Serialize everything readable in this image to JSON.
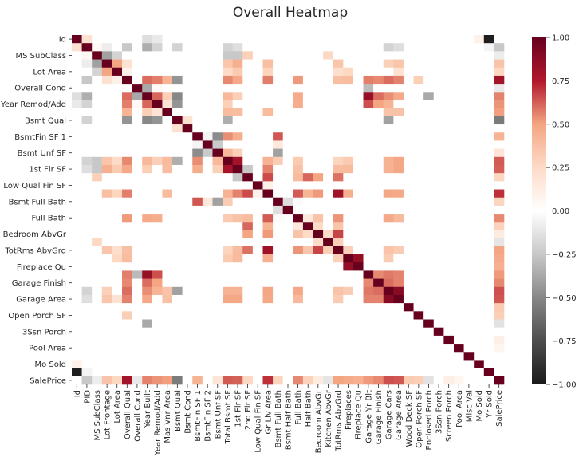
{
  "chart_data": {
    "type": "heatmap",
    "title": "Overall Heatmap",
    "variables": [
      "Id",
      "PID",
      "MS SubClass",
      "Lot Frontage",
      "Lot Area",
      "Overall Qual",
      "Overall Cond",
      "Year Built",
      "Year Remod/Add",
      "Mas Vnr Area",
      "Bsmt Qual",
      "Bsmt Cond",
      "BsmtFin SF 1",
      "BsmtFin SF 2",
      "Bsmt Unf SF",
      "Total Bsmt SF",
      "1st Flr SF",
      "2nd Flr SF",
      "Low Qual Fin SF",
      "Gr Liv Area",
      "Bsmt Full Bath",
      "Bsmt Half Bath",
      "Full Bath",
      "Half Bath",
      "Bedroom AbvGr",
      "Kitchen AbvGr",
      "TotRms AbvGrd",
      "Fireplaces",
      "Fireplace Qu",
      "Garage Yr Blt",
      "Garage Finish",
      "Garage Cars",
      "Garage Area",
      "Wood Deck SF",
      "Open Porch SF",
      "Enclosed Porch",
      "3Ssn Porch",
      "Screen Porch",
      "Pool Area",
      "Misc Val",
      "Mo Sold",
      "Yr Sold",
      "SalePrice"
    ],
    "ytick_labels": [
      "Id",
      "MS SubClass",
      "Lot Area",
      "Overall Cond",
      "Year Remod/Add",
      "Bsmt Qual",
      "BsmtFin SF 1",
      "Bsmt Unf SF",
      "1st Flr SF",
      "Low Qual Fin SF",
      "Bsmt Full Bath",
      "Full Bath",
      "Bedroom AbvGr",
      "TotRms AbvGrd",
      "Fireplace Qu",
      "Garage Finish",
      "Garage Area",
      "Open Porch SF",
      "3Ssn Porch",
      "Pool Area",
      "Mo Sold",
      "SalePrice"
    ],
    "correlations": [
      {
        "a": "Id",
        "b": "PID",
        "v": 0.2
      },
      {
        "a": "Id",
        "b": "Year Built",
        "v": -0.15
      },
      {
        "a": "Id",
        "b": "Year Remod/Add",
        "v": -0.1
      },
      {
        "a": "Id",
        "b": "Yr Sold",
        "v": -0.98
      },
      {
        "a": "Id",
        "b": "Mo Sold",
        "v": 0.1
      },
      {
        "a": "PID",
        "b": "MS SubClass",
        "v": 0.05
      },
      {
        "a": "PID",
        "b": "Lot Frontage",
        "v": -0.08
      },
      {
        "a": "PID",
        "b": "Overall Qual",
        "v": -0.25
      },
      {
        "a": "PID",
        "b": "Year Built",
        "v": -0.35
      },
      {
        "a": "PID",
        "b": "Year Remod/Add",
        "v": -0.2
      },
      {
        "a": "PID",
        "b": "Bsmt Qual",
        "v": -0.2
      },
      {
        "a": "PID",
        "b": "Total Bsmt SF",
        "v": -0.2
      },
      {
        "a": "PID",
        "b": "1st Flr SF",
        "v": -0.15
      },
      {
        "a": "PID",
        "b": "Garage Cars",
        "v": -0.2
      },
      {
        "a": "PID",
        "b": "Garage Area",
        "v": -0.15
      },
      {
        "a": "PID",
        "b": "SalePrice",
        "v": -0.25
      },
      {
        "a": "MS SubClass",
        "b": "Lot Frontage",
        "v": -0.4
      },
      {
        "a": "MS SubClass",
        "b": "Lot Area",
        "v": -0.2
      },
      {
        "a": "MS SubClass",
        "b": "Total Bsmt SF",
        "v": -0.25
      },
      {
        "a": "MS SubClass",
        "b": "1st Flr SF",
        "v": -0.25
      },
      {
        "a": "MS SubClass",
        "b": "2nd Flr SF",
        "v": 0.3
      },
      {
        "a": "MS SubClass",
        "b": "Kitchen AbvGr",
        "v": 0.26
      },
      {
        "a": "MS SubClass",
        "b": "SalePrice",
        "v": -0.08
      },
      {
        "a": "Lot Frontage",
        "b": "Lot Area",
        "v": 0.5
      },
      {
        "a": "Lot Frontage",
        "b": "Overall Qual",
        "v": 0.2
      },
      {
        "a": "Lot Frontage",
        "b": "Total Bsmt SF",
        "v": 0.35
      },
      {
        "a": "Lot Frontage",
        "b": "1st Flr SF",
        "v": 0.45
      },
      {
        "a": "Lot Frontage",
        "b": "Gr Liv Area",
        "v": 0.38
      },
      {
        "a": "Lot Frontage",
        "b": "TotRms AbvGrd",
        "v": 0.35
      },
      {
        "a": "Lot Frontage",
        "b": "Garage Cars",
        "v": 0.3
      },
      {
        "a": "Lot Frontage",
        "b": "Garage Area",
        "v": 0.35
      },
      {
        "a": "Lot Frontage",
        "b": "SalePrice",
        "v": 0.36
      },
      {
        "a": "Lot Area",
        "b": "Overall Qual",
        "v": 0.1
      },
      {
        "a": "Lot Area",
        "b": "Total Bsmt SF",
        "v": 0.25
      },
      {
        "a": "Lot Area",
        "b": "1st Flr SF",
        "v": 0.33
      },
      {
        "a": "Lot Area",
        "b": "Gr Liv Area",
        "v": 0.28
      },
      {
        "a": "Lot Area",
        "b": "TotRms AbvGrd",
        "v": 0.22
      },
      {
        "a": "Lot Area",
        "b": "Fireplaces",
        "v": 0.26
      },
      {
        "a": "Lot Area",
        "b": "Garage Area",
        "v": 0.2
      },
      {
        "a": "Lot Area",
        "b": "SalePrice",
        "v": 0.27
      },
      {
        "a": "Overall Qual",
        "b": "Year Built",
        "v": 0.6
      },
      {
        "a": "Overall Qual",
        "b": "Year Remod/Add",
        "v": 0.57
      },
      {
        "a": "Overall Qual",
        "b": "Mas Vnr Area",
        "v": 0.43
      },
      {
        "a": "Overall Qual",
        "b": "Bsmt Qual",
        "v": -0.45
      },
      {
        "a": "Overall Qual",
        "b": "Total Bsmt SF",
        "v": 0.55
      },
      {
        "a": "Overall Qual",
        "b": "1st Flr SF",
        "v": 0.48
      },
      {
        "a": "Overall Qual",
        "b": "Gr Liv Area",
        "v": 0.57
      },
      {
        "a": "Overall Qual",
        "b": "Full Bath",
        "v": 0.52
      },
      {
        "a": "Overall Qual",
        "b": "TotRms AbvGrd",
        "v": 0.38
      },
      {
        "a": "Overall Qual",
        "b": "Fireplaces",
        "v": 0.39
      },
      {
        "a": "Overall Qual",
        "b": "Garage Yr Blt",
        "v": 0.57
      },
      {
        "a": "Overall Qual",
        "b": "Garage Finish",
        "v": 0.55
      },
      {
        "a": "Overall Qual",
        "b": "Garage Cars",
        "v": 0.6
      },
      {
        "a": "Overall Qual",
        "b": "Garage Area",
        "v": 0.56
      },
      {
        "a": "Overall Qual",
        "b": "Open Porch SF",
        "v": 0.31
      },
      {
        "a": "Overall Qual",
        "b": "SalePrice",
        "v": 0.8
      },
      {
        "a": "Overall Cond",
        "b": "Year Built",
        "v": -0.37
      },
      {
        "a": "Overall Cond",
        "b": "Year Remod/Add",
        "v": 0.05
      },
      {
        "a": "Overall Cond",
        "b": "Garage Yr Blt",
        "v": -0.3
      },
      {
        "a": "Overall Cond",
        "b": "SalePrice",
        "v": -0.1
      },
      {
        "a": "Year Built",
        "b": "Year Remod/Add",
        "v": 0.61
      },
      {
        "a": "Year Built",
        "b": "Mas Vnr Area",
        "v": 0.31
      },
      {
        "a": "Year Built",
        "b": "Bsmt Qual",
        "v": -0.5
      },
      {
        "a": "Year Built",
        "b": "Total Bsmt SF",
        "v": 0.41
      },
      {
        "a": "Year Built",
        "b": "1st Flr SF",
        "v": 0.31
      },
      {
        "a": "Year Built",
        "b": "Full Bath",
        "v": 0.47
      },
      {
        "a": "Year Built",
        "b": "Garage Yr Blt",
        "v": 0.84
      },
      {
        "a": "Year Built",
        "b": "Garage Finish",
        "v": 0.6
      },
      {
        "a": "Year Built",
        "b": "Garage Cars",
        "v": 0.54
      },
      {
        "a": "Year Built",
        "b": "Garage Area",
        "v": 0.48
      },
      {
        "a": "Year Built",
        "b": "SalePrice",
        "v": 0.56
      },
      {
        "a": "Year Remod/Add",
        "b": "Mas Vnr Area",
        "v": 0.19
      },
      {
        "a": "Year Remod/Add",
        "b": "Bsmt Qual",
        "v": -0.45
      },
      {
        "a": "Year Remod/Add",
        "b": "Total Bsmt SF",
        "v": 0.3
      },
      {
        "a": "Year Remod/Add",
        "b": "Full Bath",
        "v": 0.46
      },
      {
        "a": "Year Remod/Add",
        "b": "Garage Yr Blt",
        "v": 0.65
      },
      {
        "a": "Year Remod/Add",
        "b": "Garage Finish",
        "v": 0.5
      },
      {
        "a": "Year Remod/Add",
        "b": "Garage Cars",
        "v": 0.43
      },
      {
        "a": "Year Remod/Add",
        "b": "SalePrice",
        "v": 0.53
      },
      {
        "a": "Mas Vnr Area",
        "b": "Total Bsmt SF",
        "v": 0.4
      },
      {
        "a": "Mas Vnr Area",
        "b": "1st Flr SF",
        "v": 0.39
      },
      {
        "a": "Mas Vnr Area",
        "b": "Gr Liv Area",
        "v": 0.4
      },
      {
        "a": "Mas Vnr Area",
        "b": "Garage Cars",
        "v": 0.36
      },
      {
        "a": "Mas Vnr Area",
        "b": "Garage Area",
        "v": 0.37
      },
      {
        "a": "Mas Vnr Area",
        "b": "SalePrice",
        "v": 0.51
      },
      {
        "a": "Bsmt Qual",
        "b": "Total Bsmt SF",
        "v": -0.35
      },
      {
        "a": "Bsmt Qual",
        "b": "Garage Cars",
        "v": -0.4
      },
      {
        "a": "Bsmt Qual",
        "b": "SalePrice",
        "v": -0.55
      },
      {
        "a": "Bsmt Cond",
        "b": "Bsmt Qual",
        "v": 0.2
      },
      {
        "a": "BsmtFin SF 1",
        "b": "BsmtFin SF 2",
        "v": -0.05
      },
      {
        "a": "BsmtFin SF 1",
        "b": "Bsmt Unf SF",
        "v": -0.48
      },
      {
        "a": "BsmtFin SF 1",
        "b": "Total Bsmt SF",
        "v": 0.54
      },
      {
        "a": "BsmtFin SF 1",
        "b": "1st Flr SF",
        "v": 0.46
      },
      {
        "a": "BsmtFin SF 1",
        "b": "Bsmt Full Bath",
        "v": 0.64
      },
      {
        "a": "BsmtFin SF 1",
        "b": "SalePrice",
        "v": 0.43
      },
      {
        "a": "BsmtFin SF 2",
        "b": "Bsmt Unf SF",
        "v": -0.24
      },
      {
        "a": "BsmtFin SF 2",
        "b": "Bsmt Full Bath",
        "v": 0.16
      },
      {
        "a": "Bsmt Unf SF",
        "b": "Total Bsmt SF",
        "v": 0.41
      },
      {
        "a": "Bsmt Unf SF",
        "b": "1st Flr SF",
        "v": 0.3
      },
      {
        "a": "Bsmt Unf SF",
        "b": "Bsmt Full Bath",
        "v": -0.4
      },
      {
        "a": "Bsmt Unf SF",
        "b": "SalePrice",
        "v": 0.18
      },
      {
        "a": "Total Bsmt SF",
        "b": "1st Flr SF",
        "v": 0.8
      },
      {
        "a": "Total Bsmt SF",
        "b": "Gr Liv Area",
        "v": 0.44
      },
      {
        "a": "Total Bsmt SF",
        "b": "Bsmt Full Bath",
        "v": 0.32
      },
      {
        "a": "Total Bsmt SF",
        "b": "Full Bath",
        "v": 0.33
      },
      {
        "a": "Total Bsmt SF",
        "b": "TotRms AbvGrd",
        "v": 0.28
      },
      {
        "a": "Total Bsmt SF",
        "b": "Fireplaces",
        "v": 0.33
      },
      {
        "a": "Total Bsmt SF",
        "b": "Garage Cars",
        "v": 0.44
      },
      {
        "a": "Total Bsmt SF",
        "b": "Garage Area",
        "v": 0.49
      },
      {
        "a": "Total Bsmt SF",
        "b": "SalePrice",
        "v": 0.63
      },
      {
        "a": "1st Flr SF",
        "b": "2nd Flr SF",
        "v": -0.25
      },
      {
        "a": "1st Flr SF",
        "b": "Gr Liv Area",
        "v": 0.56
      },
      {
        "a": "1st Flr SF",
        "b": "Full Bath",
        "v": 0.37
      },
      {
        "a": "1st Flr SF",
        "b": "TotRms AbvGrd",
        "v": 0.39
      },
      {
        "a": "1st Flr SF",
        "b": "Fireplaces",
        "v": 0.4
      },
      {
        "a": "1st Flr SF",
        "b": "Garage Cars",
        "v": 0.44
      },
      {
        "a": "1st Flr SF",
        "b": "Garage Area",
        "v": 0.49
      },
      {
        "a": "1st Flr SF",
        "b": "SalePrice",
        "v": 0.62
      },
      {
        "a": "2nd Flr SF",
        "b": "Gr Liv Area",
        "v": 0.66
      },
      {
        "a": "2nd Flr SF",
        "b": "Full Bath",
        "v": 0.4
      },
      {
        "a": "2nd Flr SF",
        "b": "Half Bath",
        "v": 0.61
      },
      {
        "a": "2nd Flr SF",
        "b": "Bedroom AbvGr",
        "v": 0.5
      },
      {
        "a": "2nd Flr SF",
        "b": "TotRms AbvGrd",
        "v": 0.59
      },
      {
        "a": "2nd Flr SF",
        "b": "SalePrice",
        "v": 0.27
      },
      {
        "a": "Low Qual Fin SF",
        "b": "Gr Liv Area",
        "v": 0.1
      },
      {
        "a": "Gr Liv Area",
        "b": "Full Bath",
        "v": 0.63
      },
      {
        "a": "Gr Liv Area",
        "b": "Half Bath",
        "v": 0.43
      },
      {
        "a": "Gr Liv Area",
        "b": "Bedroom AbvGr",
        "v": 0.52
      },
      {
        "a": "Gr Liv Area",
        "b": "TotRms AbvGrd",
        "v": 0.81
      },
      {
        "a": "Gr Liv Area",
        "b": "Fireplaces",
        "v": 0.45
      },
      {
        "a": "Gr Liv Area",
        "b": "Garage Cars",
        "v": 0.49
      },
      {
        "a": "Gr Liv Area",
        "b": "Garage Area",
        "v": 0.48
      },
      {
        "a": "Gr Liv Area",
        "b": "SalePrice",
        "v": 0.71
      },
      {
        "a": "Bsmt Full Bath",
        "b": "Bsmt Half Bath",
        "v": -0.15
      },
      {
        "a": "Bsmt Full Bath",
        "b": "Full Bath",
        "v": -0.02
      },
      {
        "a": "Bsmt Full Bath",
        "b": "SalePrice",
        "v": 0.28
      },
      {
        "a": "Full Bath",
        "b": "Half Bath",
        "v": 0.16
      },
      {
        "a": "Full Bath",
        "b": "Bedroom AbvGr",
        "v": 0.36
      },
      {
        "a": "Full Bath",
        "b": "TotRms AbvGrd",
        "v": 0.53
      },
      {
        "a": "Full Bath",
        "b": "Garage Cars",
        "v": 0.48
      },
      {
        "a": "Full Bath",
        "b": "Garage Area",
        "v": 0.41
      },
      {
        "a": "Full Bath",
        "b": "SalePrice",
        "v": 0.55
      },
      {
        "a": "Half Bath",
        "b": "Bedroom AbvGr",
        "v": 0.25
      },
      {
        "a": "Half Bath",
        "b": "TotRms AbvGrd",
        "v": 0.35
      },
      {
        "a": "Half Bath",
        "b": "SalePrice",
        "v": 0.29
      },
      {
        "a": "Bedroom AbvGr",
        "b": "Kitchen AbvGr",
        "v": 0.24
      },
      {
        "a": "Bedroom AbvGr",
        "b": "TotRms AbvGrd",
        "v": 0.67
      },
      {
        "a": "Bedroom AbvGr",
        "b": "SalePrice",
        "v": 0.14
      },
      {
        "a": "Kitchen AbvGr",
        "b": "TotRms AbvGrd",
        "v": 0.3
      },
      {
        "a": "Kitchen AbvGr",
        "b": "SalePrice",
        "v": -0.12
      },
      {
        "a": "TotRms AbvGrd",
        "b": "Fireplaces",
        "v": 0.3
      },
      {
        "a": "TotRms AbvGrd",
        "b": "Garage Cars",
        "v": 0.36
      },
      {
        "a": "TotRms AbvGrd",
        "b": "Garage Area",
        "v": 0.32
      },
      {
        "a": "TotRms AbvGrd",
        "b": "SalePrice",
        "v": 0.5
      },
      {
        "a": "Fireplaces",
        "b": "Fireplace Qu",
        "v": 0.85
      },
      {
        "a": "Fireplaces",
        "b": "Garage Cars",
        "v": 0.32
      },
      {
        "a": "Fireplaces",
        "b": "SalePrice",
        "v": 0.47
      },
      {
        "a": "Fireplace Qu",
        "b": "SalePrice",
        "v": 0.45
      },
      {
        "a": "Garage Yr Blt",
        "b": "Garage Finish",
        "v": 0.55
      },
      {
        "a": "Garage Yr Blt",
        "b": "Garage Cars",
        "v": 0.58
      },
      {
        "a": "Garage Yr Blt",
        "b": "Garage Area",
        "v": 0.56
      },
      {
        "a": "Garage Yr Blt",
        "b": "SalePrice",
        "v": 0.52
      },
      {
        "a": "Garage Finish",
        "b": "Garage Cars",
        "v": 0.6
      },
      {
        "a": "Garage Finish",
        "b": "Garage Area",
        "v": 0.56
      },
      {
        "a": "Garage Finish",
        "b": "SalePrice",
        "v": 0.55
      },
      {
        "a": "Garage Cars",
        "b": "Garage Area",
        "v": 0.89
      },
      {
        "a": "Garage Cars",
        "b": "SalePrice",
        "v": 0.65
      },
      {
        "a": "Garage Area",
        "b": "SalePrice",
        "v": 0.64
      },
      {
        "a": "Wood Deck SF",
        "b": "SalePrice",
        "v": 0.33
      },
      {
        "a": "Open Porch SF",
        "b": "SalePrice",
        "v": 0.31
      },
      {
        "a": "Enclosed Porch",
        "b": "Year Built",
        "v": -0.37
      },
      {
        "a": "Enclosed Porch",
        "b": "SalePrice",
        "v": -0.13
      },
      {
        "a": "Screen Porch",
        "b": "SalePrice",
        "v": 0.11
      },
      {
        "a": "Pool Area",
        "b": "SalePrice",
        "v": 0.07
      },
      {
        "a": "Yr Sold",
        "b": "PID",
        "v": -0.05
      }
    ],
    "colorbar": {
      "min": -1.0,
      "max": 1.0,
      "ticks": [
        "1.00",
        "0.75",
        "0.50",
        "0.25",
        "0.00",
        "−0.25",
        "−0.50",
        "−0.75",
        "−1.00"
      ]
    },
    "colormap": "RdGy_r",
    "colors": {
      "neg": "#1a1a1a",
      "mid": "#ffffff",
      "pos": "#67001f"
    }
  }
}
